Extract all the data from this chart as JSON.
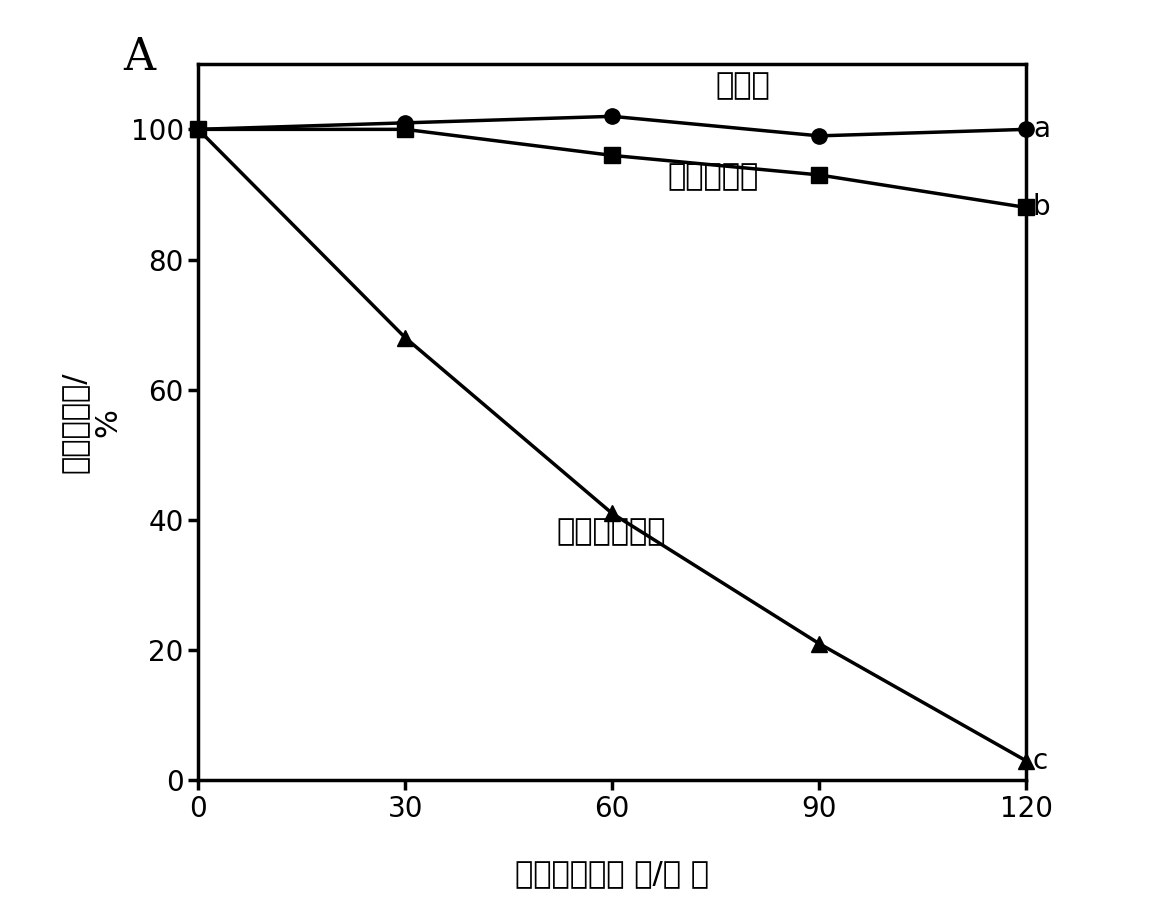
{
  "title_label": "A",
  "xlabel": "可见光照射时 间/分 钟",
  "ylabel": "细菌存活率/\n%",
  "ylabel_parts": [
    "细菌存活率/",
    "%"
  ],
  "xlim": [
    0,
    120
  ],
  "ylim": [
    0,
    110
  ],
  "xticks": [
    0,
    30,
    60,
    90,
    120
  ],
  "yticks": [
    0,
    20,
    40,
    60,
    80,
    100
  ],
  "series": [
    {
      "label": "不光照",
      "label_short": "a",
      "x": [
        0,
        30,
        60,
        90,
        120
      ],
      "y": [
        100,
        101,
        102,
        99,
        100
      ],
      "marker": "o",
      "color": "#000000",
      "linewidth": 2.5,
      "markersize": 11,
      "ann_text": "不光照",
      "ann_data_x": 75,
      "ann_data_y": 104.5,
      "letter": "a",
      "letter_y": 100
    },
    {
      "label": "不加催化剂",
      "label_short": "b",
      "x": [
        0,
        30,
        60,
        90,
        120
      ],
      "y": [
        100,
        100,
        96,
        93,
        88
      ],
      "marker": "s",
      "color": "#000000",
      "linewidth": 2.5,
      "markersize": 11,
      "ann_text": "不加催化剂",
      "ann_data_x": 68,
      "ann_data_y": 90.5,
      "letter": "b",
      "letter_y": 88
    },
    {
      "label": "加催化剂光照",
      "label_short": "c",
      "x": [
        0,
        30,
        60,
        90,
        120
      ],
      "y": [
        100,
        68,
        41,
        21,
        3
      ],
      "marker": "^",
      "color": "#000000",
      "linewidth": 2.5,
      "markersize": 11,
      "ann_text": "加催化剂光照",
      "ann_data_x": 52,
      "ann_data_y": 36,
      "letter": "c",
      "letter_y": 3
    }
  ],
  "background_color": "#ffffff",
  "axes_color": "#000000",
  "font_size_label": 22,
  "font_size_tick": 20,
  "font_size_annotation": 22,
  "font_size_title": 32,
  "font_size_letter": 20
}
